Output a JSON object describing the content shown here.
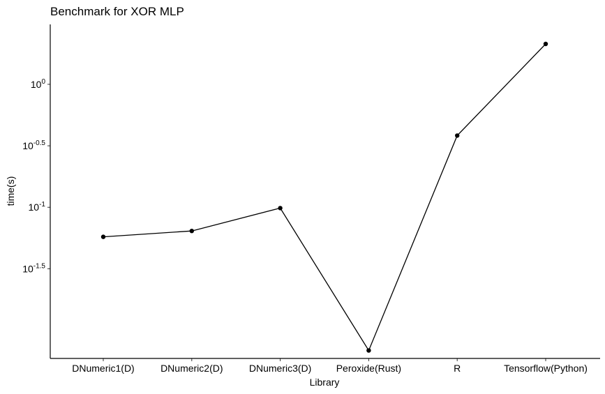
{
  "chart_data": {
    "type": "line",
    "title": "Benchmark for XOR MLP",
    "xlabel": "Library",
    "ylabel": "time(s)",
    "yscale": "log10",
    "categories": [
      "DNumeric1(D)",
      "DNumeric2(D)",
      "DNumeric3(D)",
      "Peroxide(Rust)",
      "R",
      "Tensorflow(Python)"
    ],
    "values": [
      0.0575,
      0.0642,
      0.0985,
      0.00685,
      0.383,
      2.13
    ],
    "yticks": [
      {
        "value": 1.0,
        "base": "10",
        "exp": "0"
      },
      {
        "value": 0.3162,
        "base": "10",
        "exp": "-0.5"
      },
      {
        "value": 0.1,
        "base": "10",
        "exp": "-1"
      },
      {
        "value": 0.03162,
        "base": "10",
        "exp": "-1.5"
      }
    ],
    "ylim": [
      0.0059,
      3.07
    ],
    "grid": false,
    "legend": "none"
  }
}
